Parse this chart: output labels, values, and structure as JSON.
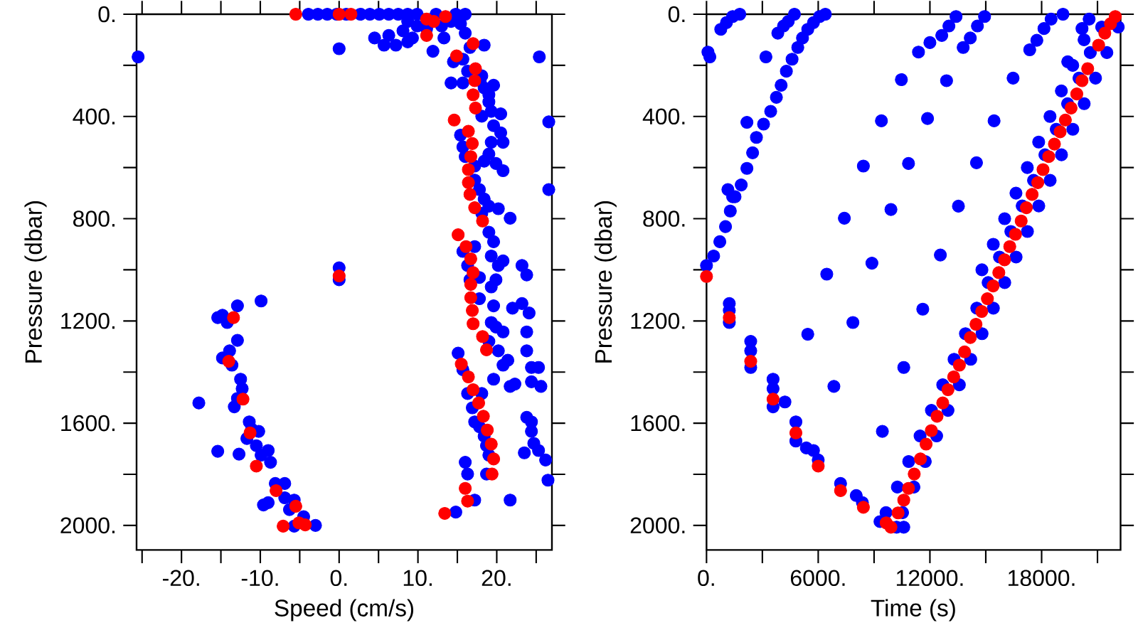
{
  "chart_data": [
    {
      "type": "scatter",
      "xlabel": "Speed (cm/s)",
      "ylabel": "Pressure (dbar)",
      "marker": "circle",
      "xlim": [
        -25.7,
        27
      ],
      "ylim": [
        2096,
        0
      ],
      "xticks": [
        {
          "value": -25,
          "label": null
        },
        {
          "value": -20,
          "label": "-20."
        },
        {
          "value": -15,
          "label": null
        },
        {
          "value": -10,
          "label": "-10."
        },
        {
          "value": -5,
          "label": null
        },
        {
          "value": 0,
          "label": "0."
        },
        {
          "value": 5,
          "label": null
        },
        {
          "value": 10,
          "label": "10."
        },
        {
          "value": 15,
          "label": null
        },
        {
          "value": 20,
          "label": "20."
        },
        {
          "value": 25,
          "label": null
        }
      ],
      "yticks": [
        {
          "value": 0,
          "label": "0."
        },
        {
          "value": 200,
          "label": null
        },
        {
          "value": 400,
          "label": "400."
        },
        {
          "value": 600,
          "label": null
        },
        {
          "value": 800,
          "label": "800."
        },
        {
          "value": 1000,
          "label": null
        },
        {
          "value": 1200,
          "label": "1200."
        },
        {
          "value": 1400,
          "label": null
        },
        {
          "value": 1600,
          "label": "1600."
        },
        {
          "value": 1800,
          "label": null
        },
        {
          "value": 2000,
          "label": "2000."
        }
      ],
      "series": [
        {
          "color": "#0000ff",
          "x": [
            -3.9,
            -2.7,
            -1.5,
            -0.3,
            0.9,
            2.7,
            3.9,
            5.1,
            6.3,
            7.5,
            8.7,
            9.9,
            12.3,
            14.8,
            16.0,
            8.7,
            9.9,
            8.1,
            9.3,
            11.1,
            13.0,
            14.2,
            15.4,
            6.3,
            4.5,
            5.7,
            7.2,
            8.7,
            13.3,
            16.0,
            11.9,
            0,
            -25.5,
            25.4,
            26.6,
            26.6,
            26.5,
            26.2,
            14.5,
            15.7,
            16.6,
            18.4,
            14.2,
            15.7,
            16.3,
            17.9,
            18.1,
            18.4,
            19.0,
            19.6,
            19.0,
            19.3,
            18.1,
            20.5,
            19.6,
            20.5,
            19.3,
            20.8,
            19.0,
            19.9,
            20.8,
            18.4,
            17.2,
            15.4,
            15.7,
            16.0,
            17.2,
            17.8,
            18.4,
            19.0,
            20.2,
            21.7,
            18.1,
            19.0,
            19.6,
            19.3,
            20.2,
            20.8,
            23.2,
            23.8,
            19.9,
            19.3,
            22.0,
            23.2,
            24.1,
            23.8,
            23.8,
            24.4,
            25.3,
            24.4,
            25.6,
            22.3,
            19.6,
            20.8,
            20.2,
            19.0,
            19.9,
            19.3,
            19.6,
            17.8,
            17.8,
            17.2,
            15.7,
            16.3,
            16.6,
            20.8,
            21.4,
            21.7,
            15.1,
            15.7,
            16.3,
            16.9,
            17.2,
            17.8,
            18.4,
            18.7,
            19.0,
            18.7,
            16.0,
            16.3,
            17.2,
            23.8,
            24.4,
            24.7,
            25.3,
            24.4,
            23.5,
            21.7,
            18.1,
            14.8,
            -15.4,
            -14.8,
            -12.9,
            -14.2,
            -12.9,
            -13.9,
            -14.8,
            -13.6,
            -9.9,
            -12.5,
            -12.3,
            -12.9,
            -13.3,
            -17.8,
            -15.4,
            -12.7,
            -11.4,
            -11.1,
            -11.7,
            -10.2,
            -10.5,
            -9.0,
            -8.7,
            -9.9,
            -8.1,
            -6.9,
            -9.6,
            -9.0,
            -6.9,
            -6.3,
            -5.7,
            -4.5,
            -3.0,
            -5.7,
            0,
            0
          ],
          "values": [
            0,
            0,
            0,
            0,
            0,
            0,
            0,
            0,
            0,
            0,
            0,
            0,
            0,
            0,
            0,
            28,
            46,
            65,
            93,
            56,
            46,
            28,
            37,
            83,
            93,
            121,
            121,
            108,
            93,
            74,
            145,
            135,
            167,
            167,
            421,
            686,
            1823,
            1744,
            186,
            176,
            130,
            121,
            269,
            269,
            223,
            260,
            241,
            288,
            315,
            278,
            343,
            380,
            399,
            390,
            436,
            464,
            501,
            501,
            547,
            584,
            612,
            575,
            594,
            473,
            519,
            557,
            649,
            686,
            723,
            751,
            761,
            798,
            779,
            853,
            890,
            946,
            983,
            965,
            983,
            1020,
            1039,
            1067,
            1150,
            1132,
            1169,
            1243,
            1317,
            1382,
            1382,
            1438,
            1456,
            1447,
            1428,
            1373,
            1317,
            1280,
            1224,
            1206,
            1141,
            1113,
            1030,
            909,
            928,
            983,
            1039,
            1243,
            1354,
            1456,
            1326,
            1391,
            1484,
            1540,
            1595,
            1614,
            1651,
            1688,
            1725,
            1799,
            1753,
            1799,
            1901,
            1577,
            1595,
            1679,
            1707,
            1632,
            1716,
            1901,
            1484,
            1948,
            1187,
            1178,
            1141,
            1206,
            1276,
            1317,
            1345,
            1373,
            1122,
            1428,
            1465,
            1503,
            1536,
            1521,
            1710,
            1721,
            1595,
            1623,
            1660,
            1632,
            1688,
            1707,
            1753,
            1725,
            1836,
            1836,
            1920,
            1911,
            1892,
            1938,
            1901,
            1966,
            2000,
            2003,
            992,
            1039
          ]
        },
        {
          "color": "#ff0000",
          "x": [
            -5.5,
            0,
            1.5,
            11.1,
            12.0,
            13.5,
            11.1,
            17.0,
            14.9,
            17.3,
            17.2,
            17.0,
            17.3,
            14.6,
            16.4,
            16.9,
            16.7,
            16.4,
            16.4,
            16.6,
            17.2,
            18.2,
            15.1,
            16.1,
            16.7,
            17.0,
            16.7,
            16.7,
            16.9,
            17.0,
            18.2,
            18.7,
            15.5,
            16.4,
            17.0,
            17.7,
            18.3,
            18.8,
            19.3,
            19.6,
            19.4,
            16.0,
            16.3,
            13.4,
            -13.4,
            -14.0,
            -12.2,
            -11.3,
            -10.5,
            -8.0,
            -5.5,
            -7.1,
            -5.1,
            -4.3,
            0
          ],
          "values": [
            0,
            0,
            0,
            19,
            28,
            9,
            83,
            115,
            163,
            213,
            260,
            315,
            367,
            414,
            458,
            506,
            557,
            608,
            659,
            705,
            757,
            809,
            863,
            909,
            957,
            1011,
            1057,
            1109,
            1159,
            1211,
            1261,
            1313,
            1369,
            1419,
            1469,
            1521,
            1573,
            1627,
            1682,
            1740,
            1799,
            1855,
            1905,
            1953,
            1187,
            1358,
            1506,
            1638,
            1768,
            1864,
            1925,
            2003,
            1990,
            1998,
            1024
          ]
        }
      ]
    },
    {
      "type": "scatter",
      "xlabel": "Time (s)",
      "ylabel": "Pressure (dbar)",
      "marker": "circle",
      "xlim": [
        0,
        22240
      ],
      "ylim": [
        2096,
        0
      ],
      "xticks": [
        {
          "value": 0,
          "label": "0."
        },
        {
          "value": 3000,
          "label": null
        },
        {
          "value": 6000,
          "label": "6000."
        },
        {
          "value": 9000,
          "label": null
        },
        {
          "value": 12000,
          "label": "12000."
        },
        {
          "value": 15000,
          "label": null
        },
        {
          "value": 18000,
          "label": "18000."
        },
        {
          "value": 21000,
          "label": null
        }
      ],
      "yticks": [
        {
          "value": 0,
          "label": "0."
        },
        {
          "value": 200,
          "label": null
        },
        {
          "value": 400,
          "label": "400."
        },
        {
          "value": 600,
          "label": null
        },
        {
          "value": 800,
          "label": "800."
        },
        {
          "value": 1000,
          "label": null
        },
        {
          "value": 1200,
          "label": "1200."
        },
        {
          "value": 1400,
          "label": null
        },
        {
          "value": 1600,
          "label": "1600."
        },
        {
          "value": 1800,
          "label": null
        },
        {
          "value": 2000,
          "label": "2000."
        }
      ],
      "series": [
        {
          "color": "#0000ff",
          "x": [
            9641,
            10251,
            10860,
            11470,
            12080,
            12689,
            13299,
            13909,
            14518,
            15128,
            15738,
            16348,
            16957,
            17567,
            18177,
            18786,
            19396,
            20006,
            20615,
            21225,
            10531,
            11141,
            11750,
            12360,
            12970,
            13579,
            14189,
            14799,
            15408,
            16018,
            16628,
            17238,
            17847,
            18457,
            19067,
            19676,
            20286,
            20896,
            21505,
            22115,
            14793,
            15403,
            16014,
            16622,
            17232,
            17842,
            18451,
            19061,
            19671,
            20280,
            1225,
            1225,
            1225,
            2374,
            2374,
            2374,
            3574,
            3574,
            3574,
            4212,
            4800,
            4800,
            5361,
            5744,
            6000,
            7199,
            8042,
            8374,
            9319,
            10212,
            10595,
            0,
            77,
            179,
            383,
            715,
            1021,
            1277,
            1532,
            1864,
            2170,
            2476,
            2681,
            3064,
            3447,
            3753,
            4008,
            4289,
            4595,
            4902,
            5157,
            5438,
            5744,
            6076,
            6383,
            1149,
            1404,
            2170,
            3191,
            3830,
            4136,
            4391,
            4723,
            766,
            1072,
            1404,
            1787,
            16467,
            15446,
            14501,
            13531,
            12561,
            11616,
            10595,
            9446,
            10467,
            9395,
            8425,
            7404,
            6459,
            5438,
            6842,
            7863,
            8884,
            9906,
            10850,
            11872,
            12893,
            11386,
            11999,
            12637,
            13020,
            13403,
            13786,
            14169,
            14552,
            14935,
            17360,
            17743,
            18126,
            18509,
            19147,
            20169,
            20552,
            19403
          ],
          "values": [
            1950,
            1850,
            1750,
            1650,
            1550,
            1450,
            1350,
            1250,
            1150,
            1050,
            950,
            850,
            750,
            650,
            550,
            450,
            350,
            250,
            150,
            50,
            1950,
            1850,
            1750,
            1650,
            1550,
            1450,
            1350,
            1250,
            1150,
            1050,
            950,
            850,
            750,
            650,
            550,
            450,
            350,
            250,
            150,
            50,
            1000,
            900,
            800,
            700,
            600,
            500,
            400,
            300,
            200,
            100,
            1132,
            1159,
            1206,
            1280,
            1317,
            1382,
            1428,
            1465,
            1536,
            1517,
            1595,
            1670,
            1697,
            1707,
            1744,
            1836,
            1883,
            1911,
            1985,
            2007,
            2007,
            983,
            148,
            167,
            946,
            890,
            831,
            770,
            714,
            668,
            603,
            542,
            482,
            430,
            380,
            325,
            278,
            223,
            176,
            130,
            93,
            59,
            33,
            9,
            0,
            686,
            714,
            423,
            167,
            74,
            46,
            28,
            0,
            59,
            33,
            9,
            0,
            250,
            417,
            581,
            751,
            942,
            1154,
            1382,
            1632,
            256,
            417,
            594,
            798,
            1017,
            1252,
            1456,
            1206,
            974,
            764,
            584,
            408,
            260,
            148,
            111,
            83,
            46,
            9,
            130,
            93,
            46,
            9,
            139,
            102,
            56,
            19,
            0,
            56,
            19,
            186
          ]
        },
        {
          "color": "#ff0000",
          "x": [
            0,
            1225,
            2374,
            3574,
            4800,
            6000,
            7199,
            8425,
            9650,
            9906,
            10289,
            10595,
            10850,
            11157,
            11489,
            11795,
            12076,
            12382,
            12688,
            12969,
            13276,
            13582,
            13863,
            14169,
            14475,
            14782,
            15088,
            15395,
            15701,
            16007,
            16288,
            16595,
            16901,
            17182,
            17488,
            17794,
            18075,
            18382,
            18688,
            18994,
            19275,
            19581,
            19888,
            20169,
            20475,
            21062,
            21394,
            21701,
            21956
          ],
          "values": [
            1026,
            1187,
            1358,
            1506,
            1638,
            1768,
            1864,
            1929,
            1990,
            2007,
            1951,
            1901,
            1855,
            1799,
            1740,
            1682,
            1629,
            1573,
            1521,
            1469,
            1419,
            1373,
            1321,
            1265,
            1213,
            1163,
            1113,
            1063,
            1011,
            961,
            909,
            861,
            809,
            757,
            705,
            659,
            608,
            557,
            508,
            460,
            414,
            367,
            312,
            260,
            213,
            121,
            74,
            37,
            9
          ]
        }
      ]
    }
  ]
}
